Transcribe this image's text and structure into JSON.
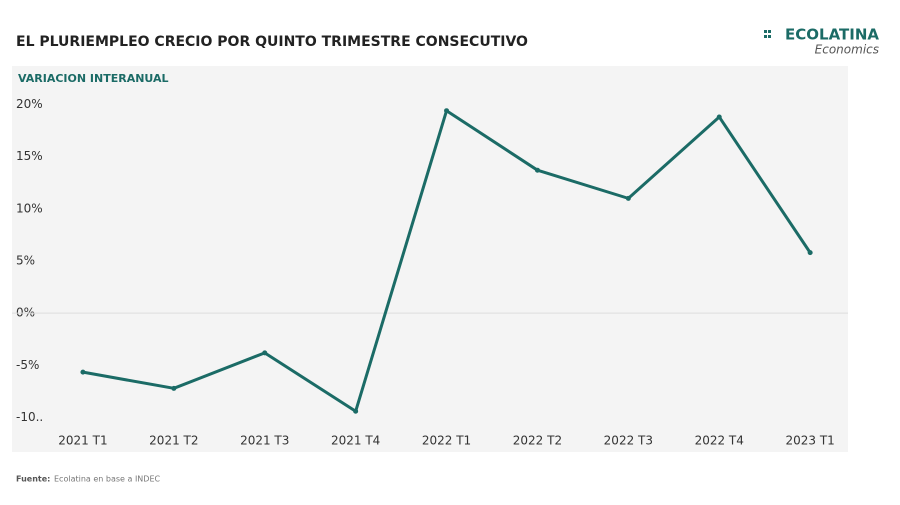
{
  "chart_data": {
    "type": "line",
    "title": "EL PLURIEMPLEO CRECIO POR QUINTO TRIMESTRE CONSECUTIVO",
    "subtitle": "VARIACION INTERANUAL",
    "brand": "ECOLATINA",
    "brand_sub": "Economics",
    "source_label": "Fuente:",
    "source": "Ecolatina en base a INDEC",
    "categories": [
      "2021 T1",
      "2021 T2",
      "2021 T3",
      "2021 T4",
      "2022 T1",
      "2022 T2",
      "2022 T3",
      "2022 T4",
      "2023 T1"
    ],
    "values": [
      -5.65,
      -7.2,
      -3.8,
      -9.4,
      19.4,
      13.7,
      11.0,
      18.8,
      5.8
    ],
    "color": "#1b6b66",
    "ylim": [
      -13.3,
      21.0
    ],
    "yticks": [
      {
        "value": 20,
        "label": "20%"
      },
      {
        "value": 15,
        "label": "15%"
      },
      {
        "value": 10,
        "label": "10%"
      },
      {
        "value": 5,
        "label": "5%"
      },
      {
        "value": 0,
        "label": "0%"
      },
      {
        "value": -5,
        "label": "-5%"
      },
      {
        "value": -10,
        "label": "-10.."
      }
    ],
    "zero_line": true
  }
}
